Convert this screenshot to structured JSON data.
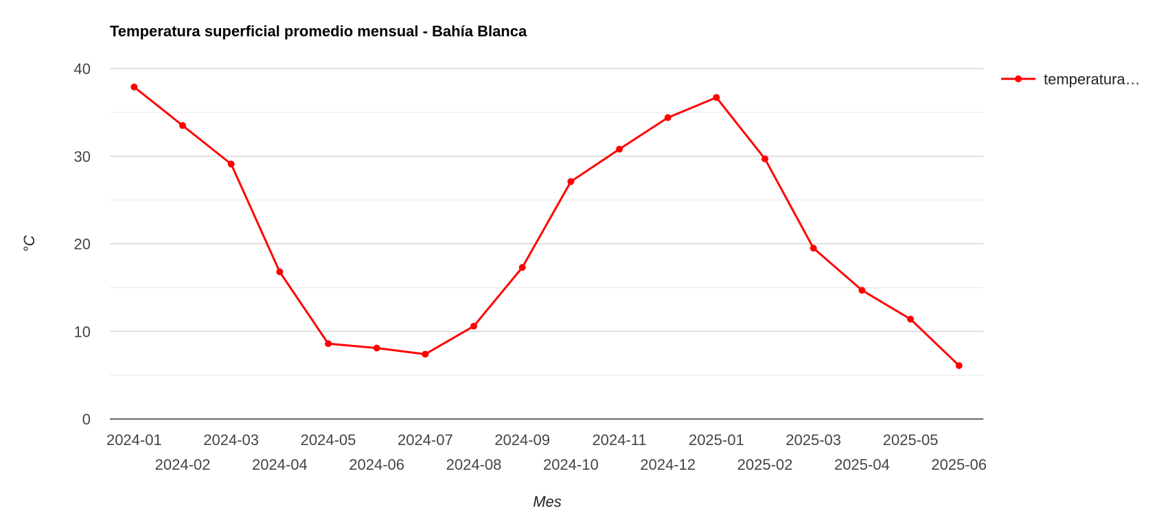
{
  "chart_data": {
    "type": "line",
    "title": "Temperatura superficial promedio mensual - Bahía Blanca",
    "xlabel": "Mes",
    "ylabel": "°C",
    "ylim": [
      0,
      40
    ],
    "yticks": [
      0,
      10,
      20,
      30,
      40
    ],
    "grid": true,
    "legend_position": "right",
    "categories": [
      "2024-01",
      "2024-02",
      "2024-03",
      "2024-04",
      "2024-05",
      "2024-06",
      "2024-07",
      "2024-08",
      "2024-09",
      "2024-10",
      "2024-11",
      "2024-12",
      "2025-01",
      "2025-02",
      "2025-03",
      "2025-04",
      "2025-05",
      "2025-06"
    ],
    "series": [
      {
        "name": "temperatura…",
        "color": "#ff0000",
        "values": [
          37.9,
          33.5,
          29.1,
          16.8,
          8.6,
          8.1,
          7.4,
          10.6,
          17.3,
          27.1,
          30.8,
          34.4,
          36.7,
          29.7,
          19.5,
          14.7,
          11.4,
          6.1
        ]
      }
    ]
  }
}
